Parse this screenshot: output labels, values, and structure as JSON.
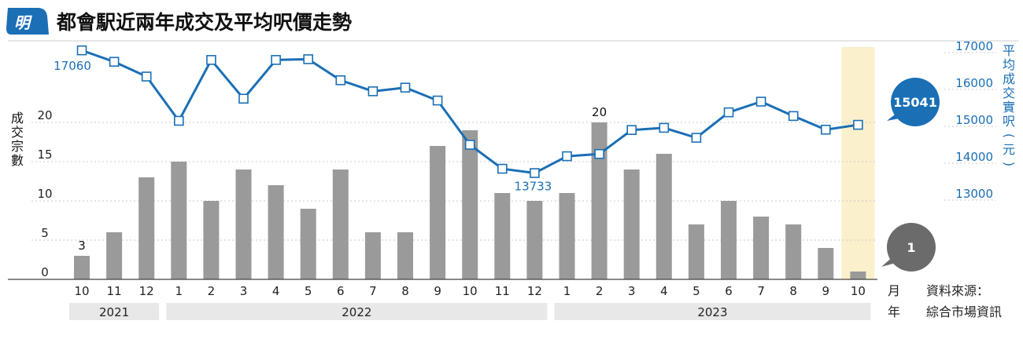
{
  "header": {
    "logo_char": "明",
    "title": "都會駅近兩年成交及平均呎價走勢"
  },
  "chart_data": {
    "type": "bar+line",
    "title": "都會駅近兩年成交及平均呎價走勢",
    "categories": [
      "10",
      "11",
      "12",
      "1",
      "2",
      "3",
      "4",
      "5",
      "6",
      "7",
      "8",
      "9",
      "10",
      "11",
      "12",
      "1",
      "2",
      "3",
      "4",
      "5",
      "6",
      "7",
      "8",
      "9",
      "10"
    ],
    "years": [
      {
        "label": "2021",
        "from": 0,
        "to": 2
      },
      {
        "label": "2022",
        "from": 3,
        "to": 14
      },
      {
        "label": "2023",
        "from": 15,
        "to": 24
      }
    ],
    "x_unit_label": "月",
    "year_unit_label": "年",
    "series": [
      {
        "name": "成交宗數",
        "type": "bar",
        "axis": "left",
        "values": [
          3,
          6,
          13,
          15,
          10,
          14,
          12,
          9,
          14,
          6,
          6,
          17,
          19,
          11,
          10,
          11,
          20,
          14,
          16,
          7,
          10,
          8,
          7,
          4,
          1
        ]
      },
      {
        "name": "平均成交實呎(元)",
        "type": "line",
        "axis": "right",
        "values": [
          17060,
          16750,
          16350,
          15150,
          16800,
          15750,
          16800,
          16820,
          16250,
          15950,
          16050,
          15700,
          14500,
          13850,
          13733,
          14190,
          14250,
          14900,
          14960,
          14690,
          15380,
          15670,
          15280,
          14910,
          15041
        ]
      }
    ],
    "left_axis": {
      "label": "成交宗數",
      "ticks": [
        "0",
        "5",
        "10",
        "15",
        "20"
      ],
      "ylim": [
        0,
        25
      ]
    },
    "right_axis": {
      "label": "平均成交實呎(元)",
      "ticks": [
        "13000",
        "14000",
        "15000",
        "16000",
        "17000"
      ],
      "ylim": [
        11000,
        17200
      ]
    },
    "data_labels": {
      "bar_first": "3",
      "bar_peak": "20",
      "line_first": "17060",
      "line_min": "13733"
    },
    "callouts": {
      "latest_price": "15041",
      "latest_count": "1"
    },
    "highlight_index": 24,
    "source": {
      "line1": "資料來源：",
      "line2": "綜合市場資訊"
    },
    "colors": {
      "bar": "#9a9a9a",
      "line": "#1a6fb5",
      "highlight": "#fbf0cc",
      "year_band": "#e8e8e8",
      "count_bubble": "#6b6b6b"
    }
  }
}
